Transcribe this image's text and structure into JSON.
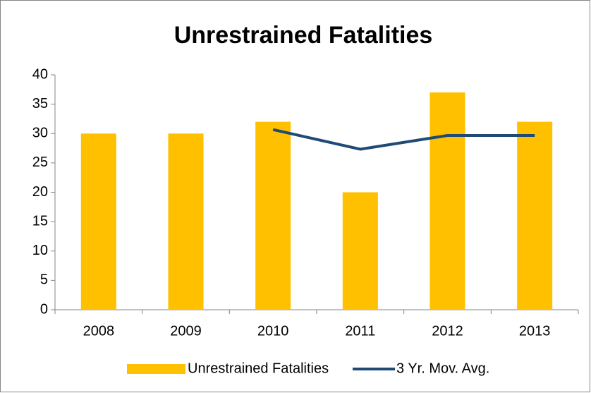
{
  "chart_data": {
    "type": "bar",
    "title": "Unrestrained Fatalities",
    "categories": [
      "2008",
      "2009",
      "2010",
      "2011",
      "2012",
      "2013"
    ],
    "series": [
      {
        "name": "Unrestrained Fatalities",
        "type": "bar",
        "color": "#FFC000",
        "values": [
          30,
          30,
          32,
          20,
          37,
          32
        ]
      },
      {
        "name": "3 Yr. Mov. Avg.",
        "type": "line",
        "color": "#1F4A75",
        "values": [
          null,
          null,
          30.67,
          27.33,
          29.67,
          29.67
        ]
      }
    ],
    "ylim": [
      0,
      40
    ],
    "yticks": [
      0,
      5,
      10,
      15,
      20,
      25,
      30,
      35,
      40
    ],
    "grid": false,
    "legend": "bottom"
  }
}
